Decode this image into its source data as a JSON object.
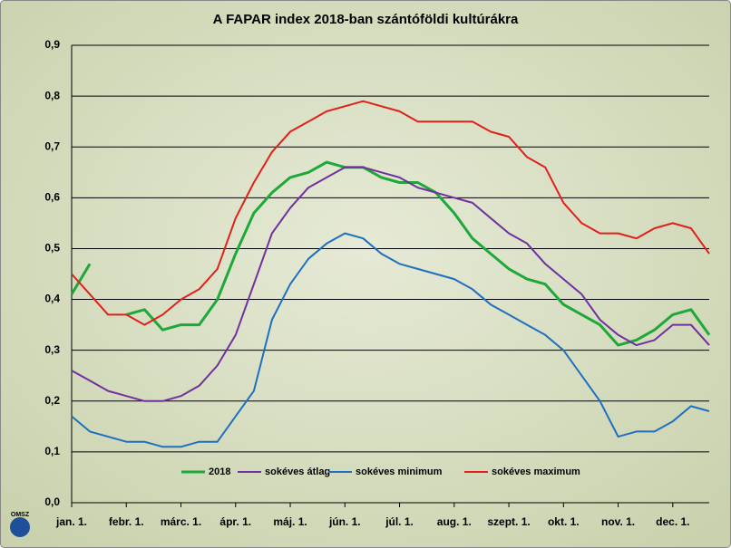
{
  "chart_data": {
    "type": "line",
    "title": "A FAPAR index 2018-ban szántóföldi kultúrákra",
    "logo": "OMSZ",
    "categories": [
      "jan. 1.",
      null,
      null,
      "febr. 1.",
      null,
      null,
      "márc. 1.",
      null,
      null,
      "ápr. 1.",
      null,
      null,
      "máj. 1.",
      null,
      null,
      "jún. 1.",
      null,
      null,
      "júl. 1.",
      null,
      null,
      "aug. 1.",
      null,
      null,
      "szept. 1.",
      null,
      null,
      "okt. 1.",
      null,
      null,
      "nov. 1.",
      null,
      null,
      "dec. 1.",
      null,
      null
    ],
    "series": [
      {
        "name": "2018",
        "color": "#1fa83a",
        "width": 3,
        "values": [
          0.41,
          0.47,
          null,
          0.37,
          0.38,
          0.34,
          0.35,
          0.35,
          0.4,
          0.49,
          0.57,
          0.61,
          0.64,
          0.65,
          0.67,
          0.66,
          0.66,
          0.64,
          0.63,
          0.63,
          0.61,
          0.57,
          0.52,
          0.49,
          0.46,
          0.44,
          0.43,
          0.39,
          0.37,
          0.35,
          0.31,
          0.32,
          0.34,
          0.37,
          0.38,
          0.33
        ]
      },
      {
        "name": "sokéves átlag",
        "color": "#7030a0",
        "width": 2,
        "values": [
          0.26,
          0.24,
          0.22,
          0.21,
          0.2,
          0.2,
          0.21,
          0.23,
          0.27,
          0.33,
          0.43,
          0.53,
          0.58,
          0.62,
          0.64,
          0.66,
          0.66,
          0.65,
          0.64,
          0.62,
          0.61,
          0.6,
          0.59,
          0.56,
          0.53,
          0.51,
          0.47,
          0.44,
          0.41,
          0.36,
          0.33,
          0.31,
          0.32,
          0.35,
          0.35,
          0.31
        ]
      },
      {
        "name": "sokéves minimum",
        "color": "#1f6fc0",
        "width": 2,
        "values": [
          0.17,
          0.14,
          0.13,
          0.12,
          0.12,
          0.11,
          0.11,
          0.12,
          0.12,
          0.17,
          0.22,
          0.36,
          0.43,
          0.48,
          0.51,
          0.53,
          0.52,
          0.49,
          0.47,
          0.46,
          0.45,
          0.44,
          0.42,
          0.39,
          0.37,
          0.35,
          0.33,
          0.3,
          0.25,
          0.2,
          0.13,
          0.14,
          0.14,
          0.16,
          0.19,
          0.18
        ]
      },
      {
        "name": "sokéves maximum",
        "color": "#e0201b",
        "width": 2,
        "values": [
          0.45,
          0.41,
          0.37,
          0.37,
          0.35,
          0.37,
          0.4,
          0.42,
          0.46,
          0.56,
          0.63,
          0.69,
          0.73,
          0.75,
          0.77,
          0.78,
          0.79,
          0.78,
          0.77,
          0.75,
          0.75,
          0.75,
          0.75,
          0.73,
          0.72,
          0.68,
          0.66,
          0.59,
          0.55,
          0.53,
          0.53,
          0.52,
          0.54,
          0.55,
          0.54,
          0.49
        ]
      }
    ],
    "ylim": [
      0,
      0.9
    ],
    "yticks": [
      {
        "value": 0,
        "label": "0,0"
      },
      {
        "value": 0.1,
        "label": "0,1"
      },
      {
        "value": 0.2,
        "label": "0,2"
      },
      {
        "value": 0.3,
        "label": "0,3"
      },
      {
        "value": 0.4,
        "label": "0,4"
      },
      {
        "value": 0.5,
        "label": "0,5"
      },
      {
        "value": 0.6,
        "label": "0,6"
      },
      {
        "value": 0.7,
        "label": "0,7"
      },
      {
        "value": 0.8,
        "label": "0,8"
      },
      {
        "value": 0.9,
        "label": "0,9"
      }
    ],
    "grid": true
  }
}
